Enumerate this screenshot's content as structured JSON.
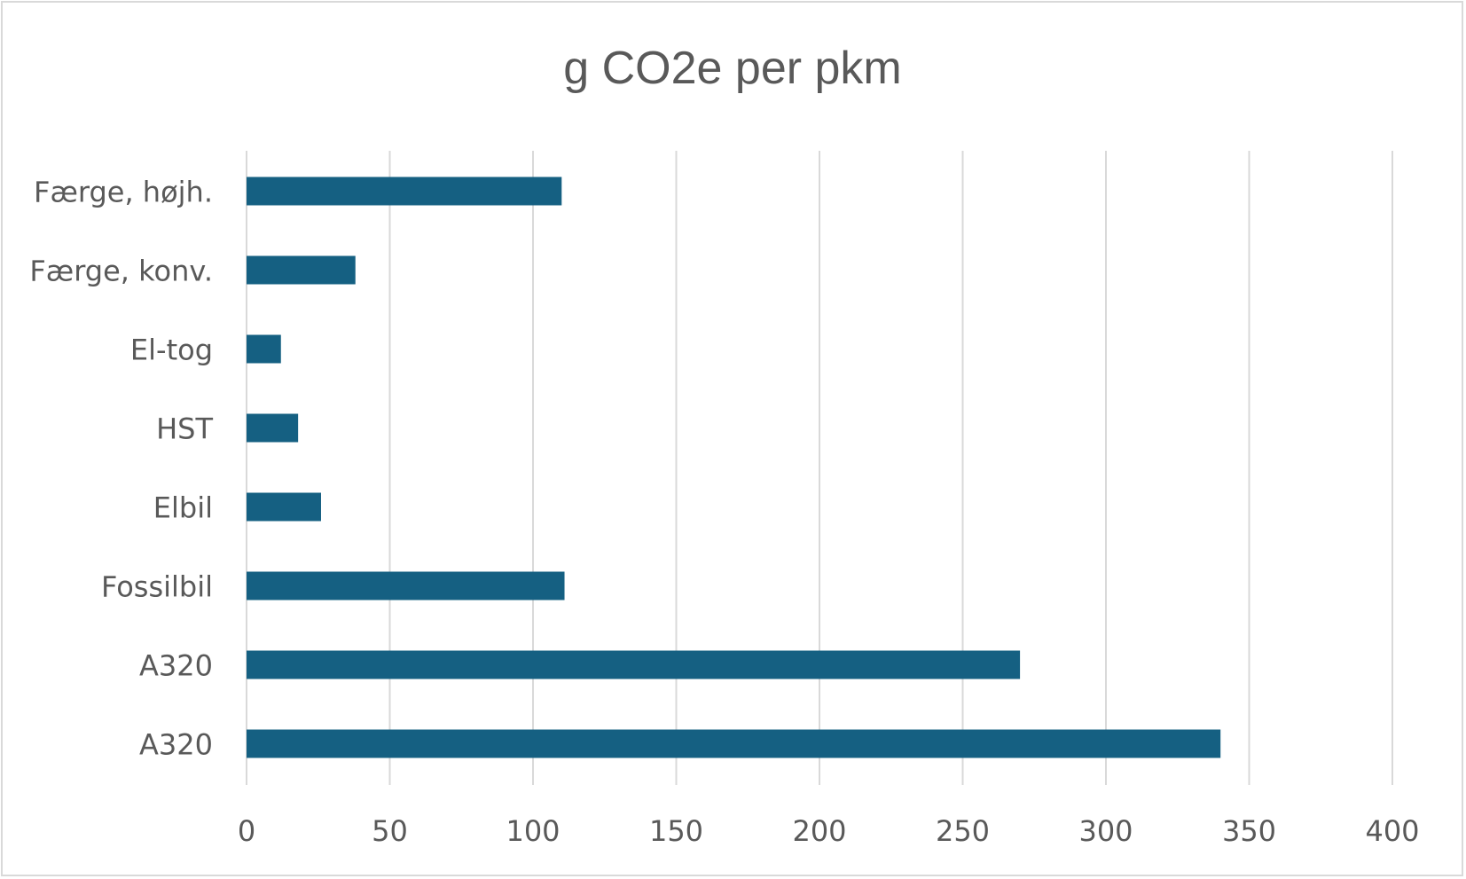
{
  "chart_data": {
    "type": "bar",
    "orientation": "horizontal",
    "title": "g CO2e per pkm",
    "xlabel": "",
    "ylabel": "",
    "categories": [
      "Færge, højh.",
      "Færge, konv.",
      "El-tog",
      "HST",
      "Elbil",
      "Fossilbil",
      "A320",
      "A320"
    ],
    "values": [
      110,
      38,
      12,
      18,
      26,
      111,
      270,
      340
    ],
    "xlim": [
      0,
      400
    ],
    "xticks": [
      "0",
      "50",
      "100",
      "150",
      "200",
      "250",
      "300",
      "350",
      "400"
    ],
    "grid": true,
    "legend": "none",
    "bar_color": "#156082"
  }
}
